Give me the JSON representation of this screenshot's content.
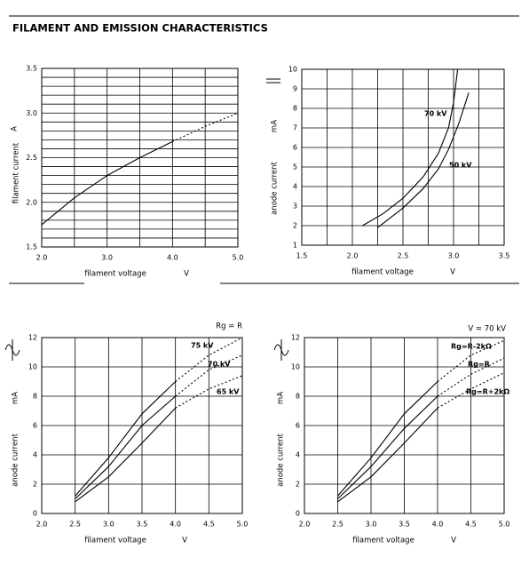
{
  "title": "FILAMENT AND EMISSION CHARACTERISTICS",
  "chart_data": [
    {
      "type": "line",
      "x_label": "filament voltage",
      "x_unit": "V",
      "y_label": "filament current",
      "y_unit": "A",
      "xlim": [
        2.0,
        5.0
      ],
      "ylim": [
        1.5,
        3.5
      ],
      "xticks": [
        {
          "value": 2.0,
          "label": "2.0"
        },
        {
          "value": 3.0,
          "label": "3.0"
        },
        {
          "value": 4.0,
          "label": "4.0"
        },
        {
          "value": 5.0,
          "label": "5.0"
        }
      ],
      "yticks": [
        1.5,
        {
          "value": 2.0,
          "label": "2.0"
        },
        2.5,
        {
          "value": 3.0,
          "label": "3.0"
        },
        3.5
      ],
      "xgrid": [
        2.0,
        2.5,
        3.0,
        3.5,
        4.0,
        4.5,
        5.0
      ],
      "ygrid": [
        1.5,
        1.6,
        1.7,
        1.8,
        1.9,
        2.0,
        2.1,
        2.2,
        2.3,
        2.4,
        2.5,
        2.6,
        2.7,
        2.8,
        2.9,
        3.0,
        3.1,
        3.2,
        3.3,
        3.4,
        3.5
      ],
      "series": [
        {
          "color": "#000000",
          "dashed_from": 4.0,
          "x": [
            2.0,
            2.5,
            3.0,
            3.5,
            4.0,
            4.5,
            5.0
          ],
          "values": [
            1.75,
            2.05,
            2.3,
            2.5,
            2.68,
            2.85,
            3.0
          ]
        }
      ]
    },
    {
      "type": "line",
      "x_label": "filament voltage",
      "x_unit": "V",
      "y_label": "anode current",
      "y_unit": "mA",
      "xlim": [
        1.5,
        3.5
      ],
      "ylim": [
        1,
        10
      ],
      "xticks": [
        1.5,
        {
          "value": 2.0,
          "label": "2.0"
        },
        2.5,
        {
          "value": 3.0,
          "label": "3.0"
        },
        3.5
      ],
      "yticks": [
        1,
        2,
        3,
        4,
        5,
        6,
        7,
        8,
        9,
        10
      ],
      "xgrid": [
        1.5,
        1.75,
        2.0,
        2.25,
        2.5,
        2.75,
        3.0,
        3.25,
        3.5
      ],
      "series": [
        {
          "name": "70 kV",
          "color": "#000000",
          "x": [
            2.1,
            2.3,
            2.5,
            2.7,
            2.85,
            2.95,
            3.0,
            3.04
          ],
          "values": [
            2.0,
            2.6,
            3.4,
            4.5,
            5.7,
            7.0,
            8.3,
            10.0
          ]
        },
        {
          "name": "50 kV",
          "color": "#000000",
          "x": [
            2.25,
            2.5,
            2.7,
            2.85,
            2.95,
            3.05,
            3.15
          ],
          "values": [
            1.9,
            2.9,
            3.9,
            4.9,
            5.9,
            7.2,
            8.8
          ]
        }
      ]
    },
    {
      "type": "line",
      "subtitle": "Rg = R",
      "x_label": "filament voltage",
      "x_unit": "V",
      "y_label": "anode current",
      "y_unit": "mA",
      "xlim": [
        2.0,
        5.0
      ],
      "ylim": [
        0,
        12
      ],
      "xticks": [
        {
          "value": 2.0,
          "label": "2.0"
        },
        2.5,
        {
          "value": 3.0,
          "label": "3.0"
        },
        3.5,
        {
          "value": 4.0,
          "label": "4.0"
        },
        4.5,
        {
          "value": 5.0,
          "label": "5.0"
        }
      ],
      "yticks": [
        0,
        2,
        4,
        6,
        8,
        10,
        12
      ],
      "series": [
        {
          "name": "75 kV",
          "color": "#000000",
          "dashed_from": 4.0,
          "x": [
            2.5,
            3.0,
            3.5,
            4.0,
            4.5,
            5.0
          ],
          "values": [
            1.2,
            3.8,
            6.8,
            9.0,
            10.8,
            12.0
          ]
        },
        {
          "name": "70 kV",
          "color": "#000000",
          "dashed_from": 4.0,
          "x": [
            2.5,
            3.0,
            3.5,
            4.0,
            4.5,
            5.0
          ],
          "values": [
            1.0,
            3.2,
            6.0,
            8.0,
            9.8,
            10.8
          ]
        },
        {
          "name": "65 kV",
          "color": "#000000",
          "dashed_from": 4.0,
          "x": [
            2.5,
            3.0,
            3.5,
            4.0,
            4.5,
            5.0
          ],
          "values": [
            0.8,
            2.5,
            4.8,
            7.2,
            8.5,
            9.4
          ]
        }
      ]
    },
    {
      "type": "line",
      "subtitle": "V = 70 kV",
      "x_label": "filament voltage",
      "x_unit": "V",
      "y_label": "anode current",
      "y_unit": "mA",
      "xlim": [
        2.0,
        5.0
      ],
      "ylim": [
        0,
        12
      ],
      "xticks": [
        {
          "value": 2.0,
          "label": "2.0"
        },
        2.5,
        {
          "value": 3.0,
          "label": "3.0"
        },
        3.5,
        {
          "value": 4.0,
          "label": "4.0"
        },
        4.5,
        {
          "value": 5.0,
          "label": "5.0"
        }
      ],
      "yticks": [
        0,
        2,
        4,
        6,
        8,
        10,
        12
      ],
      "series": [
        {
          "name": "Rg=R-2kΩ",
          "color": "#000000",
          "dashed_from": 4.0,
          "x": [
            2.5,
            3.0,
            3.5,
            4.0,
            4.5,
            5.0
          ],
          "values": [
            1.2,
            3.8,
            6.8,
            9.0,
            10.8,
            11.8
          ]
        },
        {
          "name": "Rg=R",
          "color": "#000000",
          "dashed_from": 4.0,
          "x": [
            2.5,
            3.0,
            3.5,
            4.0,
            4.5,
            5.0
          ],
          "values": [
            1.0,
            3.2,
            5.8,
            8.0,
            9.5,
            10.6
          ]
        },
        {
          "name": "Rg=R+2kΩ",
          "color": "#000000",
          "dashed_from": 4.0,
          "x": [
            2.5,
            3.0,
            3.5,
            4.0,
            4.5,
            5.0
          ],
          "values": [
            0.8,
            2.5,
            4.8,
            7.2,
            8.5,
            9.6
          ]
        }
      ]
    }
  ]
}
